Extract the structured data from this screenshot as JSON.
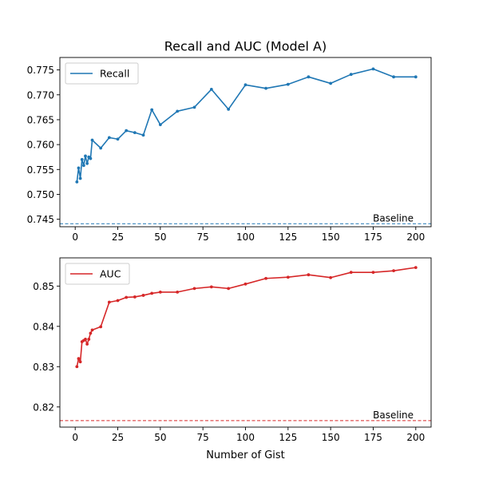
{
  "figure_title": "Recall and AUC (Model A)",
  "chart_data": [
    {
      "type": "line",
      "title": "Recall and AUC (Model A)",
      "xlabel": "",
      "ylabel": "",
      "xlim": [
        -9,
        209
      ],
      "ylim": [
        0.7435,
        0.7775
      ],
      "xticks": [
        0,
        25,
        50,
        75,
        100,
        125,
        150,
        175,
        200
      ],
      "yticks": [
        0.745,
        0.75,
        0.755,
        0.76,
        0.765,
        0.77,
        0.775
      ],
      "ytick_labels": [
        "0.745",
        "0.750",
        "0.755",
        "0.760",
        "0.765",
        "0.770",
        "0.775"
      ],
      "grid": false,
      "legend": "upper-left",
      "series": [
        {
          "name": "Recall",
          "color": "#1f77b4",
          "x": [
            1,
            2,
            3,
            4,
            5,
            6,
            7,
            8,
            9,
            10,
            15,
            20,
            25,
            30,
            35,
            40,
            45,
            50,
            60,
            70,
            80,
            90,
            100,
            112,
            125,
            137,
            150,
            162,
            175,
            187,
            200
          ],
          "y": [
            0.7525,
            0.7553,
            0.7532,
            0.757,
            0.7558,
            0.7577,
            0.7562,
            0.7575,
            0.7572,
            0.7609,
            0.7593,
            0.7614,
            0.7611,
            0.7628,
            0.7624,
            0.7619,
            0.767,
            0.764,
            0.7667,
            0.7675,
            0.7711,
            0.7671,
            0.772,
            0.7713,
            0.7721,
            0.7736,
            0.7723,
            0.7741,
            0.7752,
            0.7736,
            0.7736
          ]
        }
      ],
      "baseline": {
        "label": "Baseline",
        "value": 0.7441,
        "color": "#1f77b4"
      }
    },
    {
      "type": "line",
      "title": "",
      "xlabel": "Number of Gist",
      "ylabel": "",
      "xlim": [
        -9,
        209
      ],
      "ylim": [
        0.815,
        0.857
      ],
      "xticks": [
        0,
        25,
        50,
        75,
        100,
        125,
        150,
        175,
        200
      ],
      "yticks": [
        0.82,
        0.83,
        0.84,
        0.85
      ],
      "ytick_labels": [
        "0.82",
        "0.83",
        "0.84",
        "0.85"
      ],
      "grid": false,
      "legend": "upper-left",
      "series": [
        {
          "name": "AUC",
          "color": "#d62728",
          "x": [
            1,
            2,
            3,
            4,
            5,
            6,
            7,
            8,
            9,
            10,
            15,
            20,
            25,
            30,
            35,
            40,
            45,
            50,
            60,
            70,
            80,
            90,
            100,
            112,
            125,
            137,
            150,
            162,
            175,
            187,
            200
          ],
          "y": [
            0.83,
            0.832,
            0.8312,
            0.8362,
            0.8365,
            0.8368,
            0.8356,
            0.8368,
            0.8383,
            0.8391,
            0.8399,
            0.846,
            0.8464,
            0.8472,
            0.8473,
            0.8477,
            0.8482,
            0.8485,
            0.8485,
            0.8494,
            0.8498,
            0.8494,
            0.8505,
            0.8519,
            0.8522,
            0.8528,
            0.8521,
            0.8534,
            0.8534,
            0.8538,
            0.8546
          ]
        }
      ],
      "baseline": {
        "label": "Baseline",
        "value": 0.8166,
        "color": "#d62728"
      }
    }
  ]
}
